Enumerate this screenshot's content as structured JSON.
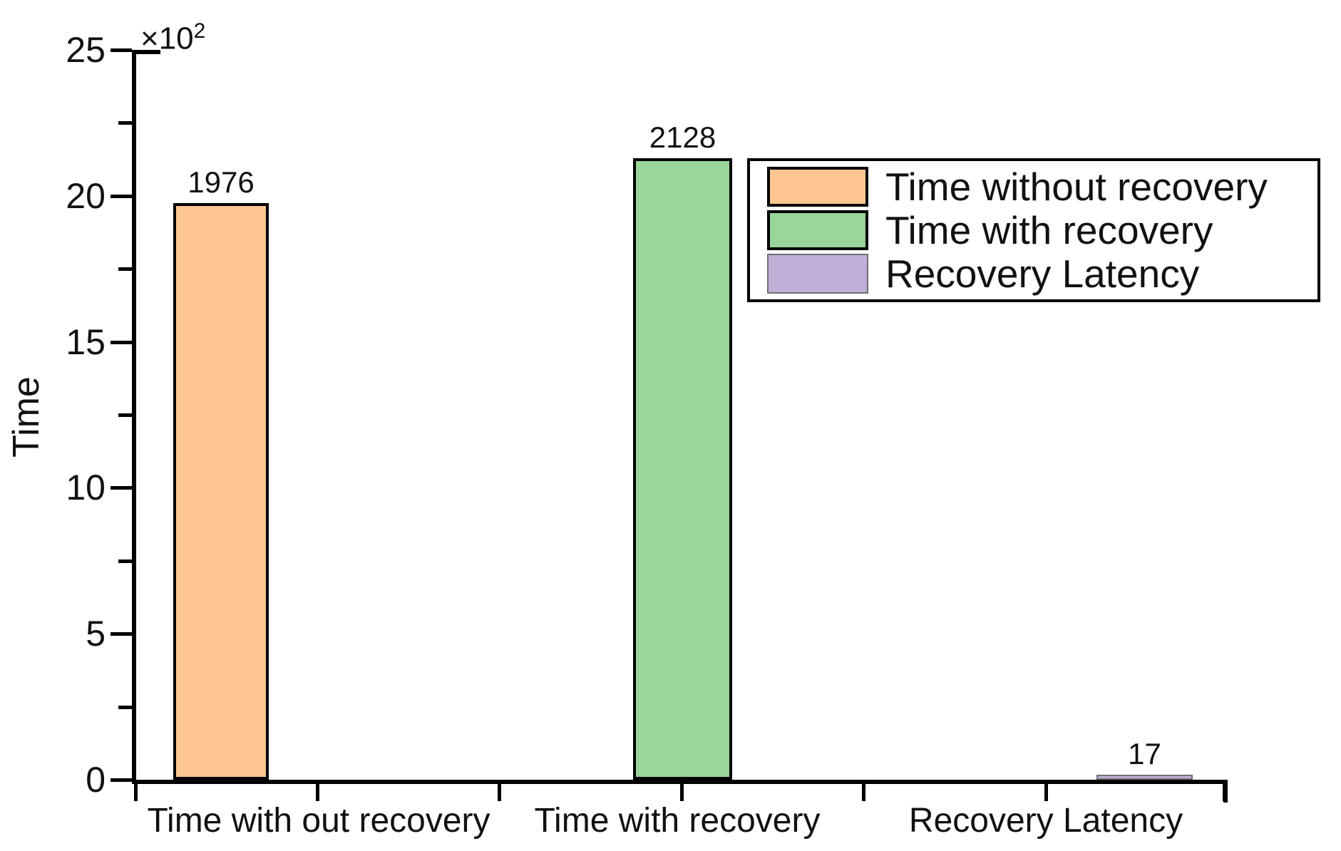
{
  "chart_data": {
    "type": "bar",
    "title": "",
    "ylabel": "Time",
    "y_axis_multiplier": "×10",
    "y_axis_multiplier_exponent": "2",
    "ylim": [
      0,
      2500
    ],
    "yticks_displayed": [
      "25",
      "20",
      "15",
      "10",
      "5",
      "0"
    ],
    "y_minor_ticks": true,
    "grid": false,
    "legend_position": "upper right",
    "categories": [
      "Time with out recovery",
      "Time with recovery",
      "Recovery Latency"
    ],
    "values": [
      1976,
      2128,
      17
    ],
    "bar_value_labels": [
      "1976",
      "2128",
      "17"
    ],
    "legend": [
      {
        "label": "Time without recovery",
        "color": "#fbc690"
      },
      {
        "label": "Time with recovery",
        "color": "#99d69a"
      },
      {
        "label": "Recovery Latency",
        "color": "#c1afd8"
      }
    ],
    "axis_color": "#000000",
    "text_color": "#111111",
    "background_color": "#ffffff"
  }
}
